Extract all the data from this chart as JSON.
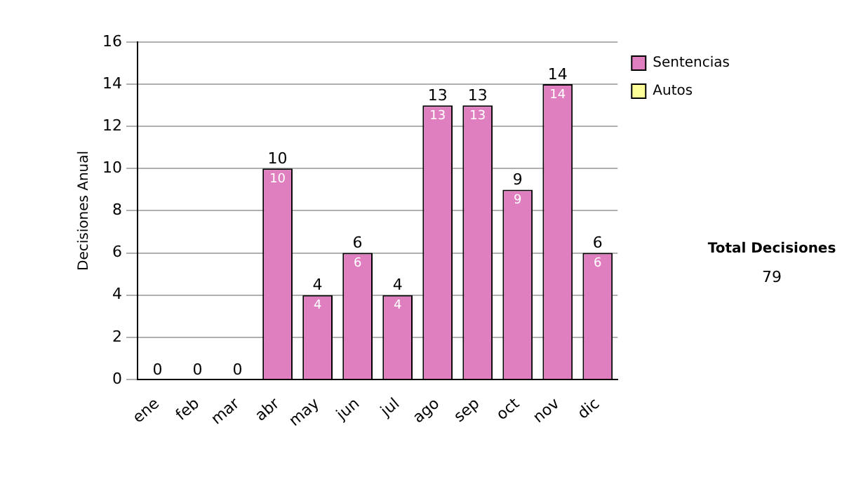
{
  "chart_data": {
    "type": "bar",
    "categories": [
      "ene",
      "feb",
      "mar",
      "abr",
      "may",
      "jun",
      "jul",
      "ago",
      "sep",
      "oct",
      "nov",
      "dic"
    ],
    "series": [
      {
        "name": "Sentencias",
        "color": "#e07fc0",
        "values": [
          0,
          0,
          0,
          10,
          4,
          6,
          4,
          13,
          13,
          9,
          14,
          6
        ],
        "value_labels": [
          null,
          null,
          null,
          "10",
          "4",
          "6",
          "4",
          "13",
          "13",
          "9",
          "14",
          "6"
        ]
      },
      {
        "name": "Autos",
        "color": "#ffff99",
        "values": [
          0,
          0,
          0,
          0,
          0,
          0,
          0,
          0,
          0,
          0,
          0,
          0
        ]
      }
    ],
    "stacked": true,
    "totals": [
      "0",
      "0",
      "0",
      "10",
      "4",
      "6",
      "4",
      "13",
      "13",
      "9",
      "14",
      "6"
    ],
    "ylabel": "Decisiones Anual",
    "ylim": [
      0,
      16
    ],
    "yticks": [
      0,
      2,
      4,
      6,
      8,
      10,
      12,
      14,
      16
    ],
    "grid": "y",
    "legend": "right",
    "annotations": [
      "Total Decisiones",
      "79"
    ]
  }
}
